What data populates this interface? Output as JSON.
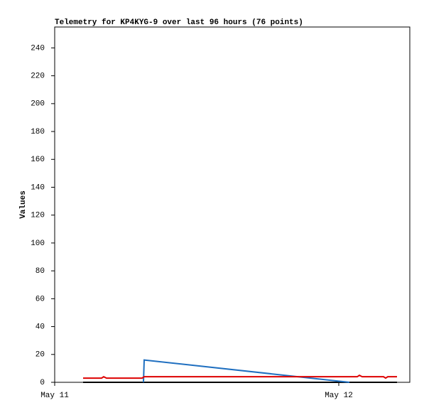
{
  "chart_data": {
    "type": "line",
    "title": "Telemetry for KP4KYG-9 over last 96 hours (76 points)",
    "y_label": "Values",
    "xlim": [
      0,
      30
    ],
    "xticks": [
      {
        "value": 0,
        "label": "May 11"
      },
      {
        "value": 24,
        "label": "May 12"
      }
    ],
    "ylim": [
      0,
      255
    ],
    "yticks": [
      0,
      20,
      40,
      60,
      80,
      100,
      120,
      140,
      160,
      180,
      200,
      220,
      240
    ],
    "grid": false,
    "series": [
      {
        "color": "#000000",
        "x": [
          2.4,
          28.92
        ],
        "values": [
          0,
          0
        ]
      },
      {
        "color": "#1f6fc0",
        "x": [
          7.5,
          7.56,
          24.9
        ],
        "values": [
          0,
          16,
          0
        ]
      },
      {
        "color": "#dd0000",
        "x": [
          2.4,
          3.96,
          4.14,
          4.38,
          7.38,
          7.56,
          25.56,
          25.74,
          25.98,
          27.78,
          27.96,
          28.14,
          28.92
        ],
        "values": [
          3,
          3,
          4,
          3,
          3,
          4,
          4,
          5,
          4,
          4,
          3,
          4,
          4
        ]
      }
    ]
  }
}
